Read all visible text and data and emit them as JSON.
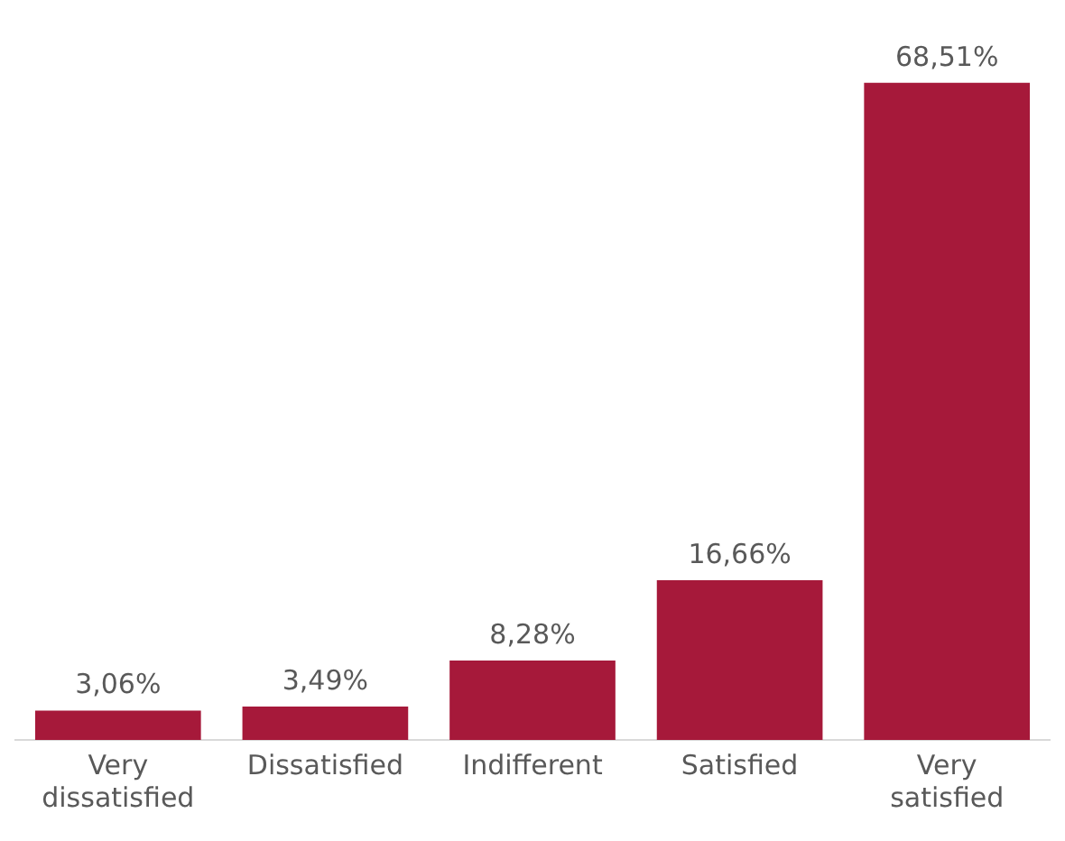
{
  "chart_data": {
    "type": "bar",
    "categories": [
      "Very dissatisfied",
      "Dissatisfied",
      "Indifferent",
      "Satisfied",
      "Very satisfied"
    ],
    "values": [
      3.06,
      3.49,
      8.28,
      16.66,
      68.51
    ],
    "value_labels": [
      "3,06%",
      "3,49%",
      "8,28%",
      "16,66%",
      "68,51%"
    ],
    "color": "#a6193a",
    "grid": false,
    "legend": false
  }
}
